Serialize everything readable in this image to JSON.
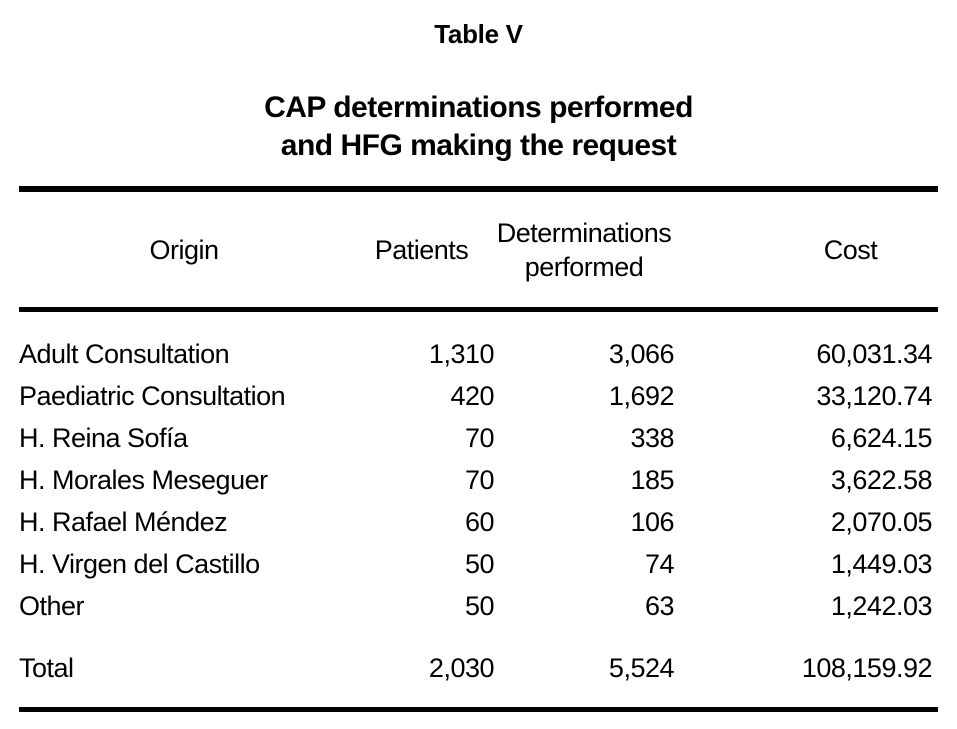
{
  "page": {
    "title": "Table V",
    "caption_line1": "CAP determinations performed",
    "caption_line2": "and HFG making the request"
  },
  "table": {
    "columns": [
      "Origin",
      "Patients",
      "Determinations performed",
      "Cost"
    ],
    "rows": [
      {
        "origin": "Adult Consultation",
        "patients": "1,310",
        "determinations": "3,066",
        "cost": "60,031.34"
      },
      {
        "origin": "Paediatric Consultation",
        "patients": "420",
        "determinations": "1,692",
        "cost": "33,120.74"
      },
      {
        "origin": "H. Reina Sofía",
        "patients": "70",
        "determinations": "338",
        "cost": "6,624.15"
      },
      {
        "origin": "H. Morales Meseguer",
        "patients": "70",
        "determinations": "185",
        "cost": "3,622.58"
      },
      {
        "origin": "H. Rafael Méndez",
        "patients": "60",
        "determinations": "106",
        "cost": "2,070.05"
      },
      {
        "origin": "H. Virgen del Castillo",
        "patients": "50",
        "determinations": "74",
        "cost": "1,449.03"
      },
      {
        "origin": "Other",
        "patients": "50",
        "determinations": "63",
        "cost": "1,242.03"
      }
    ],
    "total": {
      "origin": "Total",
      "patients": "2,030",
      "determinations": "5,524",
      "cost": "108,159.92"
    }
  },
  "colors": {
    "background": "#ffffff",
    "text": "#000000",
    "rule": "#000000"
  }
}
